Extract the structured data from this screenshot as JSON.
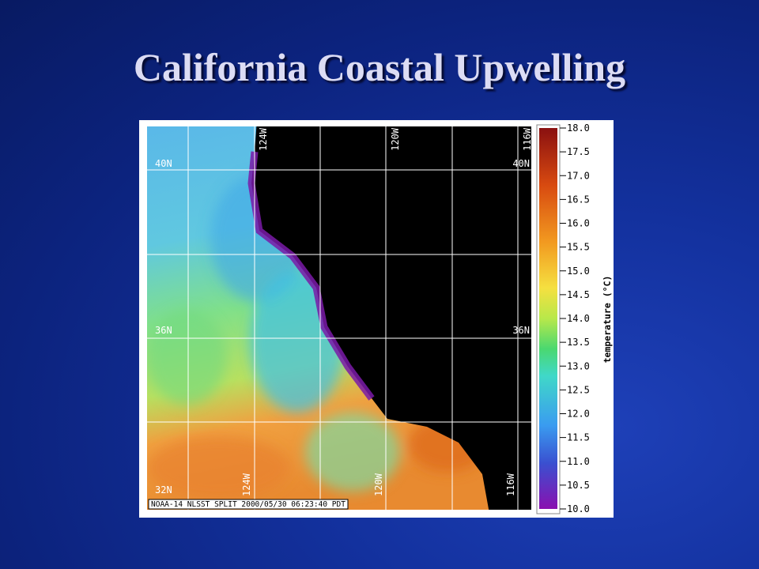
{
  "title": "California Coastal Upwelling",
  "map": {
    "lon_labels_top": [
      "124W",
      "120W",
      "116W"
    ],
    "lon_labels_bottom": [
      "124W",
      "120W",
      "116W"
    ],
    "lat_labels_left": [
      "40N",
      "36N",
      "32N"
    ],
    "lat_labels_right": [
      "40N",
      "36N"
    ],
    "caption": "NOAA-14 NLSST SPLIT 2000/05/30 06:23:40 PDT",
    "colorbar": {
      "label": "temperature (°C)",
      "ticks": [
        {
          "value": 18,
          "label": "18.0"
        },
        {
          "value": 17.5,
          "label": "17.5"
        },
        {
          "value": 17,
          "label": "17.0"
        },
        {
          "value": 16.5,
          "label": "16.5"
        },
        {
          "value": 16,
          "label": "16.0"
        },
        {
          "value": 15.5,
          "label": "15.5"
        },
        {
          "value": 15,
          "label": "15.0"
        },
        {
          "value": 14.5,
          "label": "14.5"
        },
        {
          "value": 14,
          "label": "14.0"
        },
        {
          "value": 13.5,
          "label": "13.5"
        },
        {
          "value": 13,
          "label": "13.0"
        },
        {
          "value": 12.5,
          "label": "12.5"
        },
        {
          "value": 12,
          "label": "12.0"
        },
        {
          "value": 11.5,
          "label": "11.5"
        },
        {
          "value": 11,
          "label": "11.0"
        },
        {
          "value": 10.5,
          "label": "10.5"
        },
        {
          "value": 10,
          "label": "10.0"
        }
      ]
    }
  }
}
